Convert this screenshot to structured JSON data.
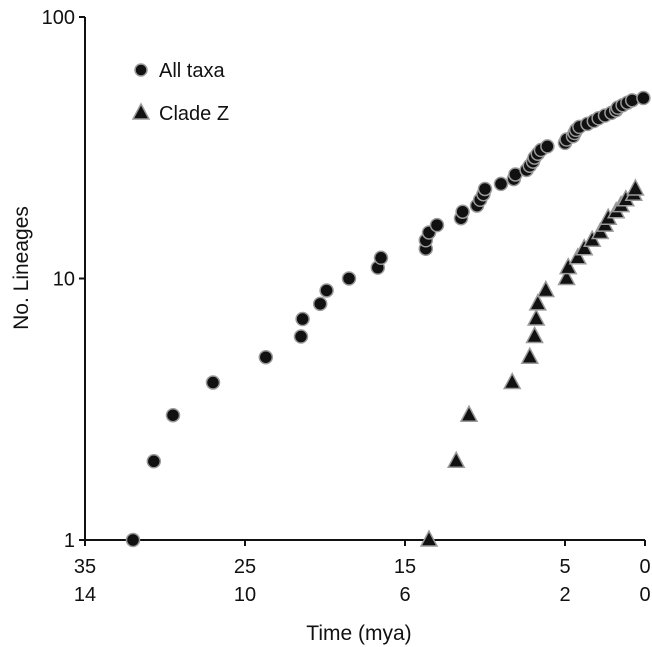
{
  "chart_data": {
    "type": "scatter",
    "xlabel": "Time (mya)",
    "ylabel": "No. Lineages",
    "y_scale": "log",
    "ylim": [
      1,
      100
    ],
    "xlim": [
      35,
      0
    ],
    "grid": false,
    "legend_position": "top-left",
    "y_ticks": [
      "100",
      "10",
      "1"
    ],
    "x_tick_rows": [
      [
        "35",
        "25",
        "15",
        "5",
        "0"
      ],
      [
        "14",
        "10",
        "6",
        "2",
        "0"
      ]
    ],
    "series": [
      {
        "name": "All taxa",
        "marker": "circle",
        "color": "#111111",
        "points": [
          [
            32.0,
            1
          ],
          [
            30.7,
            2
          ],
          [
            29.5,
            3
          ],
          [
            27.0,
            4
          ],
          [
            23.7,
            5
          ],
          [
            21.5,
            6
          ],
          [
            21.4,
            7
          ],
          [
            20.3,
            8
          ],
          [
            19.9,
            9
          ],
          [
            18.5,
            10
          ],
          [
            16.7,
            11
          ],
          [
            16.5,
            12
          ],
          [
            13.7,
            13
          ],
          [
            13.7,
            14
          ],
          [
            13.5,
            15
          ],
          [
            13.0,
            16
          ],
          [
            11.5,
            17
          ],
          [
            11.4,
            18
          ],
          [
            10.5,
            19
          ],
          [
            10.3,
            20
          ],
          [
            10.1,
            21
          ],
          [
            10.0,
            22
          ],
          [
            9.0,
            23
          ],
          [
            8.2,
            24
          ],
          [
            8.1,
            25
          ],
          [
            7.4,
            26
          ],
          [
            7.2,
            27
          ],
          [
            7.0,
            28
          ],
          [
            6.9,
            29
          ],
          [
            6.7,
            30
          ],
          [
            6.5,
            31
          ],
          [
            6.1,
            32
          ],
          [
            5.0,
            33
          ],
          [
            4.9,
            34
          ],
          [
            4.5,
            35
          ],
          [
            4.4,
            36
          ],
          [
            4.3,
            37
          ],
          [
            4.1,
            38
          ],
          [
            3.6,
            39
          ],
          [
            3.2,
            40
          ],
          [
            2.9,
            41
          ],
          [
            2.5,
            42
          ],
          [
            2.1,
            43
          ],
          [
            1.8,
            44
          ],
          [
            1.7,
            45
          ],
          [
            1.4,
            46
          ],
          [
            1.1,
            47
          ],
          [
            0.8,
            48
          ],
          [
            0.1,
            49
          ]
        ]
      },
      {
        "name": "Clade Z",
        "marker": "triangle",
        "color": "#111111",
        "points": [
          [
            13.5,
            1
          ],
          [
            11.8,
            2
          ],
          [
            11.0,
            3
          ],
          [
            8.3,
            4
          ],
          [
            7.2,
            5
          ],
          [
            6.9,
            6
          ],
          [
            6.8,
            7
          ],
          [
            6.7,
            8
          ],
          [
            6.2,
            9
          ],
          [
            4.9,
            10
          ],
          [
            4.8,
            11
          ],
          [
            4.2,
            12
          ],
          [
            3.8,
            13
          ],
          [
            3.3,
            14
          ],
          [
            2.8,
            15
          ],
          [
            2.5,
            16
          ],
          [
            2.3,
            17
          ],
          [
            1.8,
            18
          ],
          [
            1.5,
            19
          ],
          [
            1.2,
            20
          ],
          [
            0.7,
            21
          ],
          [
            0.6,
            22
          ]
        ]
      }
    ]
  }
}
